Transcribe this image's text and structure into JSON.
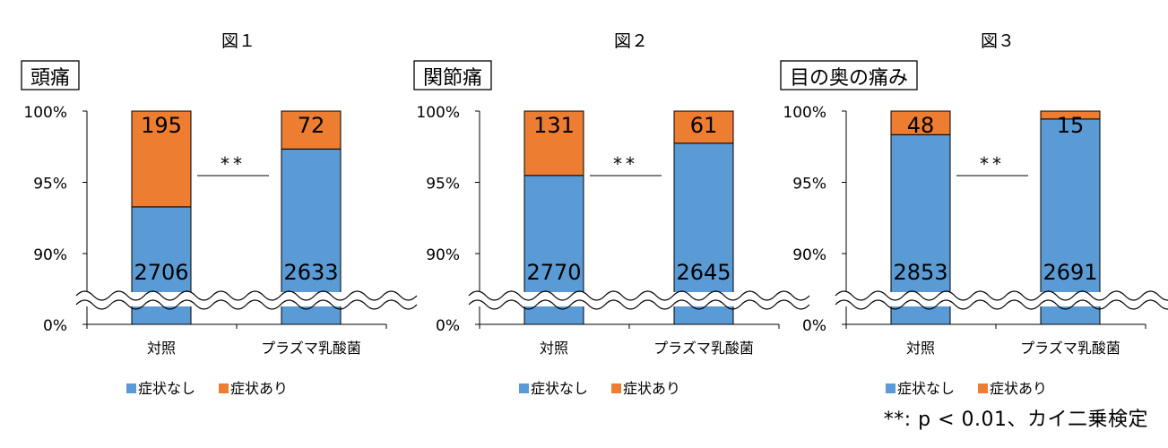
{
  "colors": {
    "no_symptom": "#5b9bd5",
    "symptom": "#ed7d31",
    "axis": "#000000"
  },
  "chart_data": [
    {
      "type": "bar",
      "stacked": true,
      "percent": true,
      "figure_label": "図１",
      "title": "頭痛",
      "categories": [
        "対照",
        "プラズマ乳酸菌"
      ],
      "series": [
        {
          "name": "症状なし",
          "values": [
            2706,
            2633
          ]
        },
        {
          "name": "症状あり",
          "values": [
            195,
            72
          ]
        }
      ],
      "y_ticks": [
        "0%",
        "90%",
        "95%",
        "100%"
      ],
      "ylim": [
        0.85,
        1.0
      ],
      "axis_break": true,
      "significance": "**",
      "legend": "bottom"
    },
    {
      "type": "bar",
      "stacked": true,
      "percent": true,
      "figure_label": "図２",
      "title": "関節痛",
      "categories": [
        "対照",
        "プラズマ乳酸菌"
      ],
      "series": [
        {
          "name": "症状なし",
          "values": [
            2770,
            2645
          ]
        },
        {
          "name": "症状あり",
          "values": [
            131,
            61
          ]
        }
      ],
      "y_ticks": [
        "0%",
        "90%",
        "95%",
        "100%"
      ],
      "ylim": [
        0.85,
        1.0
      ],
      "axis_break": true,
      "significance": "**",
      "legend": "bottom"
    },
    {
      "type": "bar",
      "stacked": true,
      "percent": true,
      "figure_label": "図３",
      "title": "目の奥の痛み",
      "categories": [
        "対照",
        "プラズマ乳酸菌"
      ],
      "series": [
        {
          "name": "症状なし",
          "values": [
            2853,
            2691
          ]
        },
        {
          "name": "症状あり",
          "values": [
            48,
            15
          ]
        }
      ],
      "y_ticks": [
        "0%",
        "90%",
        "95%",
        "100%"
      ],
      "ylim": [
        0.85,
        1.0
      ],
      "axis_break": true,
      "significance": "**",
      "legend": "bottom"
    }
  ],
  "footnote": "**: p < 0.01、カイ二乗検定"
}
